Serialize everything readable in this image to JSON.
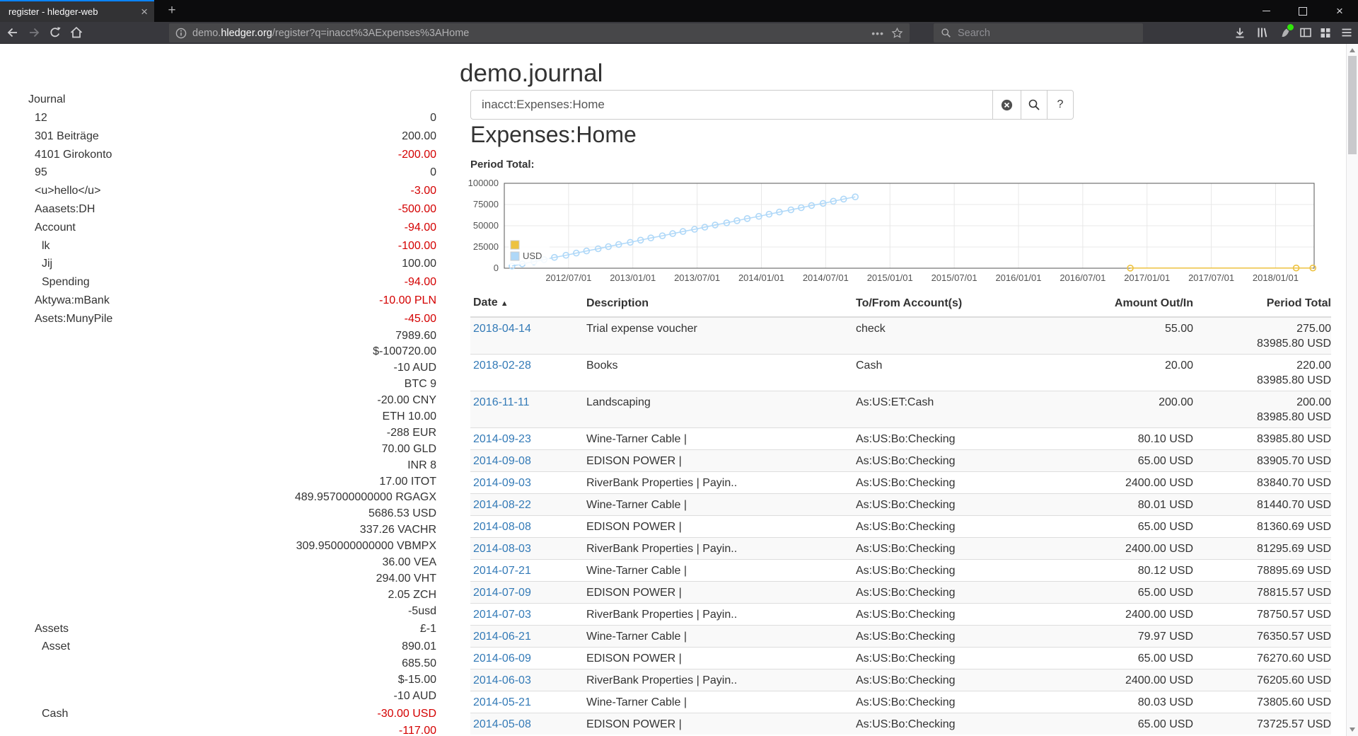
{
  "browser": {
    "tab_title": "register - hledger-web",
    "new_tab_label": "+",
    "url_prefix": "demo.",
    "url_domain": "hledger.org",
    "url_path": "/register?q=inacct%3AExpenses%3AHome",
    "search_placeholder": "Search"
  },
  "page": {
    "title": "demo.journal",
    "query_value": "inacct:Expenses:Home",
    "heading": "Expenses:Home",
    "period_total_label": "Period Total:",
    "help_button_label": "?"
  },
  "colors": {
    "link": "#337ab7",
    "negative": "#d40000",
    "tab_accent": "#0a84ff",
    "series_other": "#edc240",
    "series_usd": "#afd8f8"
  },
  "sidebar": {
    "journal_label": "Journal",
    "rows": [
      {
        "name": "12",
        "indent": 0,
        "balance": "0",
        "negative": false
      },
      {
        "name": "301 Beiträge",
        "indent": 0,
        "balance": "200.00",
        "negative": false
      },
      {
        "name": "4101 Girokonto",
        "indent": 0,
        "balance": "-200.00",
        "negative": true
      },
      {
        "name": "95",
        "indent": 0,
        "balance": "0",
        "negative": false
      },
      {
        "name": "<u>hello</u>",
        "indent": 0,
        "balance": "-3.00",
        "negative": true
      },
      {
        "name": "Aaasets:DH",
        "indent": 0,
        "balance": "-500.00",
        "negative": true
      },
      {
        "name": "Account",
        "indent": 0,
        "balance": "-94.00",
        "negative": true
      },
      {
        "name": "lk",
        "indent": 1,
        "balance": "-100.00",
        "negative": true
      },
      {
        "name": "Jij",
        "indent": 1,
        "balance": "100.00",
        "negative": false
      },
      {
        "name": "Spending",
        "indent": 1,
        "balance": "-94.00",
        "negative": true
      },
      {
        "name": "Aktywa:mBank",
        "indent": 0,
        "balance": "-10.00 PLN",
        "negative": true
      },
      {
        "name": "Asets:MunyPile",
        "indent": 0,
        "balance": "-45.00",
        "negative": true
      },
      {
        "name": "",
        "indent": 0,
        "balance": "7989.60",
        "negative": false
      },
      {
        "name": "",
        "indent": 0,
        "balance": "$-100720.00",
        "negative": false
      },
      {
        "name": "",
        "indent": 0,
        "balance": "-10 AUD",
        "negative": false
      },
      {
        "name": "",
        "indent": 0,
        "balance": "BTC 9",
        "negative": false
      },
      {
        "name": "",
        "indent": 0,
        "balance": "-20.00 CNY",
        "negative": false
      },
      {
        "name": "",
        "indent": 0,
        "balance": "ETH 10.00",
        "negative": false
      },
      {
        "name": "",
        "indent": 0,
        "balance": "-288 EUR",
        "negative": false
      },
      {
        "name": "",
        "indent": 0,
        "balance": "70.00 GLD",
        "negative": false
      },
      {
        "name": "",
        "indent": 0,
        "balance": "INR 8",
        "negative": false
      },
      {
        "name": "",
        "indent": 0,
        "balance": "17.00 ITOT",
        "negative": false
      },
      {
        "name": "",
        "indent": 0,
        "balance": "489.957000000000 RGAGX",
        "negative": false
      },
      {
        "name": "",
        "indent": 0,
        "balance": "5686.53 USD",
        "negative": false
      },
      {
        "name": "",
        "indent": 0,
        "balance": "337.26 VACHR",
        "negative": false
      },
      {
        "name": "",
        "indent": 0,
        "balance": "309.950000000000 VBMPX",
        "negative": false
      },
      {
        "name": "",
        "indent": 0,
        "balance": "36.00 VEA",
        "negative": false
      },
      {
        "name": "",
        "indent": 0,
        "balance": "294.00 VHT",
        "negative": false
      },
      {
        "name": "",
        "indent": 0,
        "balance": "2.05 ZCH",
        "negative": false
      },
      {
        "name": "",
        "indent": 0,
        "balance": "-5usd",
        "negative": false
      },
      {
        "name": "Assets",
        "indent": 0,
        "balance": "£-1",
        "negative": false
      },
      {
        "name": "Asset",
        "indent": 1,
        "balance": "890.01",
        "negative": false
      },
      {
        "name": "",
        "indent": 0,
        "balance": "685.50",
        "negative": false
      },
      {
        "name": "",
        "indent": 0,
        "balance": "$-15.00",
        "negative": false
      },
      {
        "name": "",
        "indent": 0,
        "balance": "-10 AUD",
        "negative": false
      },
      {
        "name": "Cash",
        "indent": 1,
        "balance": "-30.00 USD",
        "negative": true
      },
      {
        "name": "",
        "indent": 0,
        "balance": "-117.00",
        "negative": true
      }
    ]
  },
  "register": {
    "columns": [
      "Date",
      "Description",
      "To/From Account(s)",
      "Amount Out/In",
      "Period Total"
    ],
    "sort_caret": "▲",
    "rows": [
      {
        "date": "2018-04-14",
        "description": "Trial expense voucher",
        "account": "check",
        "amount": "55.00",
        "totals": [
          "275.00",
          "83985.80 USD"
        ]
      },
      {
        "date": "2018-02-28",
        "description": "Books",
        "account": "Cash",
        "amount": "20.00",
        "totals": [
          "220.00",
          "83985.80 USD"
        ]
      },
      {
        "date": "2016-11-11",
        "description": "Landscaping",
        "account": "As:US:ET:Cash",
        "amount": "200.00",
        "totals": [
          "200.00",
          "83985.80 USD"
        ]
      },
      {
        "date": "2014-09-23",
        "description": "Wine-Tarner Cable |",
        "account": "As:US:Bo:Checking",
        "amount": "80.10 USD",
        "totals": [
          "83985.80 USD"
        ]
      },
      {
        "date": "2014-09-08",
        "description": "EDISON POWER |",
        "account": "As:US:Bo:Checking",
        "amount": "65.00 USD",
        "totals": [
          "83905.70 USD"
        ]
      },
      {
        "date": "2014-09-03",
        "description": "RiverBank Properties | Payin..",
        "account": "As:US:Bo:Checking",
        "amount": "2400.00 USD",
        "totals": [
          "83840.70 USD"
        ]
      },
      {
        "date": "2014-08-22",
        "description": "Wine-Tarner Cable |",
        "account": "As:US:Bo:Checking",
        "amount": "80.01 USD",
        "totals": [
          "81440.70 USD"
        ]
      },
      {
        "date": "2014-08-08",
        "description": "EDISON POWER |",
        "account": "As:US:Bo:Checking",
        "amount": "65.00 USD",
        "totals": [
          "81360.69 USD"
        ]
      },
      {
        "date": "2014-08-03",
        "description": "RiverBank Properties | Payin..",
        "account": "As:US:Bo:Checking",
        "amount": "2400.00 USD",
        "totals": [
          "81295.69 USD"
        ]
      },
      {
        "date": "2014-07-21",
        "description": "Wine-Tarner Cable |",
        "account": "As:US:Bo:Checking",
        "amount": "80.12 USD",
        "totals": [
          "78895.69 USD"
        ]
      },
      {
        "date": "2014-07-09",
        "description": "EDISON POWER |",
        "account": "As:US:Bo:Checking",
        "amount": "65.00 USD",
        "totals": [
          "78815.57 USD"
        ]
      },
      {
        "date": "2014-07-03",
        "description": "RiverBank Properties | Payin..",
        "account": "As:US:Bo:Checking",
        "amount": "2400.00 USD",
        "totals": [
          "78750.57 USD"
        ]
      },
      {
        "date": "2014-06-21",
        "description": "Wine-Tarner Cable |",
        "account": "As:US:Bo:Checking",
        "amount": "79.97 USD",
        "totals": [
          "76350.57 USD"
        ]
      },
      {
        "date": "2014-06-09",
        "description": "EDISON POWER |",
        "account": "As:US:Bo:Checking",
        "amount": "65.00 USD",
        "totals": [
          "76270.60 USD"
        ]
      },
      {
        "date": "2014-06-03",
        "description": "RiverBank Properties | Payin..",
        "account": "As:US:Bo:Checking",
        "amount": "2400.00 USD",
        "totals": [
          "76205.60 USD"
        ]
      },
      {
        "date": "2014-05-21",
        "description": "Wine-Tarner Cable |",
        "account": "As:US:Bo:Checking",
        "amount": "80.03 USD",
        "totals": [
          "73805.60 USD"
        ]
      },
      {
        "date": "2014-05-08",
        "description": "EDISON POWER |",
        "account": "As:US:Bo:Checking",
        "amount": "65.00 USD",
        "totals": [
          "73725.57 USD"
        ]
      }
    ]
  },
  "chart_data": {
    "type": "line",
    "title": "Period Total:",
    "x_axis": {
      "min": 2012.0,
      "max": 2018.3,
      "ticks": [
        {
          "v": 2012.5,
          "label": "2012/07/01"
        },
        {
          "v": 2013.0,
          "label": "2013/01/01"
        },
        {
          "v": 2013.5,
          "label": "2013/07/01"
        },
        {
          "v": 2014.0,
          "label": "2014/01/01"
        },
        {
          "v": 2014.5,
          "label": "2014/07/01"
        },
        {
          "v": 2015.0,
          "label": "2015/01/01"
        },
        {
          "v": 2015.5,
          "label": "2015/07/01"
        },
        {
          "v": 2016.0,
          "label": "2016/01/01"
        },
        {
          "v": 2016.5,
          "label": "2016/07/01"
        },
        {
          "v": 2017.0,
          "label": "2017/01/01"
        },
        {
          "v": 2017.5,
          "label": "2017/07/01"
        },
        {
          "v": 2018.0,
          "label": "2018/01/01"
        }
      ]
    },
    "y_axis": {
      "min": 0,
      "max": 100000,
      "ticks": [
        {
          "v": 0,
          "label": "0"
        },
        {
          "v": 25000,
          "label": "25000"
        },
        {
          "v": 50000,
          "label": "50000"
        },
        {
          "v": 75000,
          "label": "75000"
        },
        {
          "v": 100000,
          "label": "100000"
        }
      ]
    },
    "legend": [
      {
        "label": "",
        "color": "#edc240"
      },
      {
        "label": "USD",
        "color": "#afd8f8"
      }
    ],
    "series": [
      {
        "name": "",
        "color": "#edc240",
        "points": [
          [
            2016.87,
            200
          ],
          [
            2018.16,
            220
          ],
          [
            2018.29,
            275
          ]
        ]
      },
      {
        "name": "USD",
        "color": "#afd8f8",
        "points": [
          [
            2012.06,
            2545
          ],
          [
            2012.14,
            5090
          ],
          [
            2012.23,
            7635
          ],
          [
            2012.31,
            10180
          ],
          [
            2012.39,
            12725
          ],
          [
            2012.48,
            15270
          ],
          [
            2012.56,
            17815
          ],
          [
            2012.64,
            20360
          ],
          [
            2012.73,
            22905
          ],
          [
            2012.81,
            25450
          ],
          [
            2012.89,
            27995
          ],
          [
            2012.98,
            30540
          ],
          [
            2013.06,
            33085
          ],
          [
            2013.14,
            35630
          ],
          [
            2013.23,
            38175
          ],
          [
            2013.31,
            40720
          ],
          [
            2013.39,
            43265
          ],
          [
            2013.48,
            45810
          ],
          [
            2013.56,
            48355
          ],
          [
            2013.64,
            50900
          ],
          [
            2013.73,
            53445
          ],
          [
            2013.81,
            55990
          ],
          [
            2013.89,
            58535
          ],
          [
            2013.98,
            61080
          ],
          [
            2014.06,
            63625
          ],
          [
            2014.14,
            66170
          ],
          [
            2014.23,
            68715
          ],
          [
            2014.31,
            71260
          ],
          [
            2014.39,
            73805
          ],
          [
            2014.48,
            76350
          ],
          [
            2014.56,
            78895
          ],
          [
            2014.64,
            81440
          ],
          [
            2014.73,
            83985.8
          ]
        ]
      }
    ]
  }
}
